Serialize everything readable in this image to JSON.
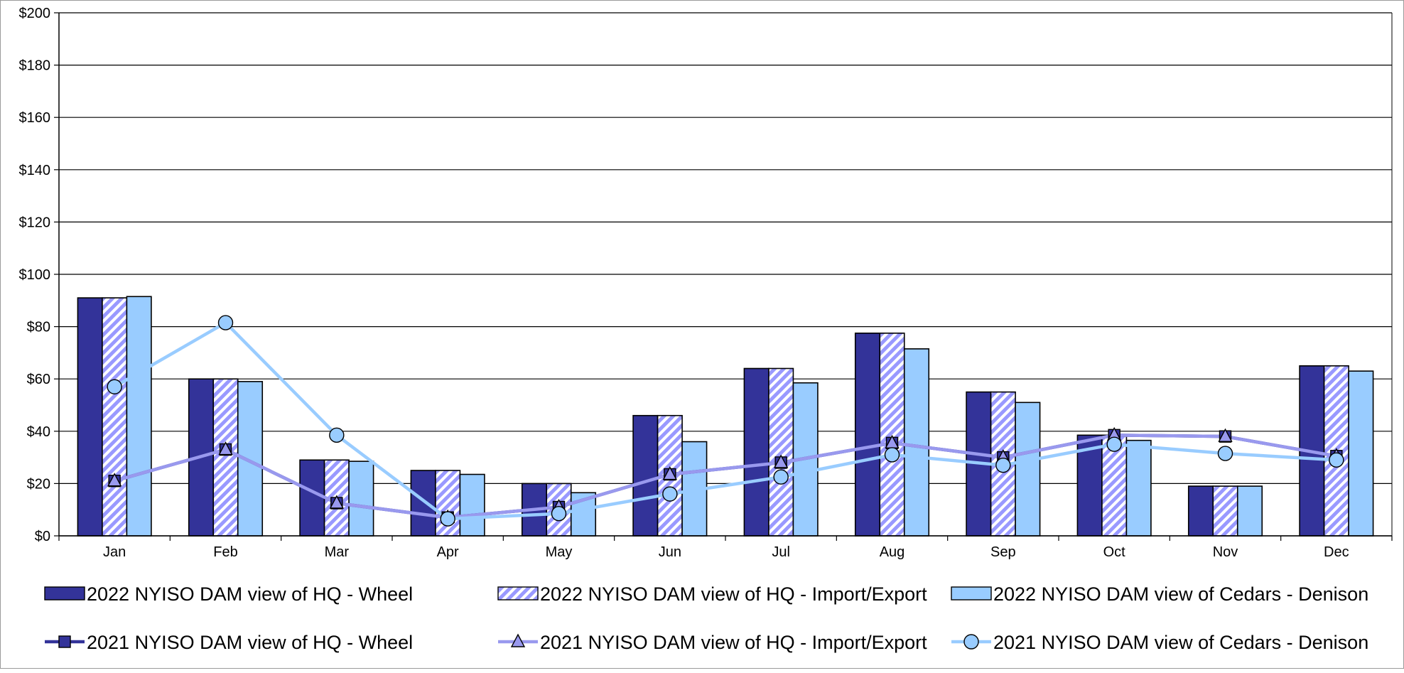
{
  "chart_data": {
    "type": "bar",
    "categories": [
      "Jan",
      "Feb",
      "Mar",
      "Apr",
      "May",
      "Jun",
      "Jul",
      "Aug",
      "Sep",
      "Oct",
      "Nov",
      "Dec"
    ],
    "ylim": [
      0,
      200
    ],
    "yticks": [
      0,
      20,
      40,
      60,
      80,
      100,
      120,
      140,
      160,
      180,
      200
    ],
    "ytick_labels": [
      "$0",
      "$20",
      "$40",
      "$60",
      "$80",
      "$100",
      "$120",
      "$140",
      "$160",
      "$180",
      "$200"
    ],
    "grid": true,
    "legend_position": "bottom",
    "bar_series": [
      {
        "name": "2022 NYISO DAM view of HQ - Wheel",
        "color": "#333399",
        "pattern": "solid",
        "values": [
          91,
          60,
          29,
          25,
          20,
          46,
          64,
          77.5,
          55,
          38.5,
          19,
          65
        ]
      },
      {
        "name": "2022 NYISO DAM view of HQ - Import/Export",
        "color": "#9999ff",
        "pattern": "hatched",
        "values": [
          91,
          60,
          29,
          25,
          20,
          46,
          64,
          77.5,
          55,
          38.5,
          19,
          65
        ]
      },
      {
        "name": "2022 NYISO DAM view of Cedars - Denison",
        "color": "#99ccff",
        "pattern": "solid",
        "values": [
          91.5,
          59,
          28.5,
          23.5,
          16.5,
          36,
          58.5,
          71.5,
          51,
          36.5,
          19,
          63
        ]
      }
    ],
    "line_series": [
      {
        "name": "2021 NYISO DAM view of HQ - Wheel",
        "color": "#333399",
        "marker": "square",
        "values": [
          21,
          33,
          12.5,
          7,
          11,
          23.5,
          28,
          35.5,
          30,
          38.5,
          38,
          30.5
        ]
      },
      {
        "name": "2021 NYISO DAM view of HQ - Import/Export",
        "color": "#9999ee",
        "marker": "triangle",
        "values": [
          21,
          33,
          12.5,
          7,
          11,
          23.5,
          28,
          35.5,
          30,
          38.5,
          38,
          30.5
        ]
      },
      {
        "name": "2021 NYISO DAM view of Cedars - Denison",
        "color": "#99ccff",
        "marker": "circle",
        "values": [
          57,
          81.5,
          38.5,
          6.5,
          8.5,
          16,
          22.5,
          31,
          27,
          35,
          31.5,
          29
        ]
      }
    ]
  }
}
